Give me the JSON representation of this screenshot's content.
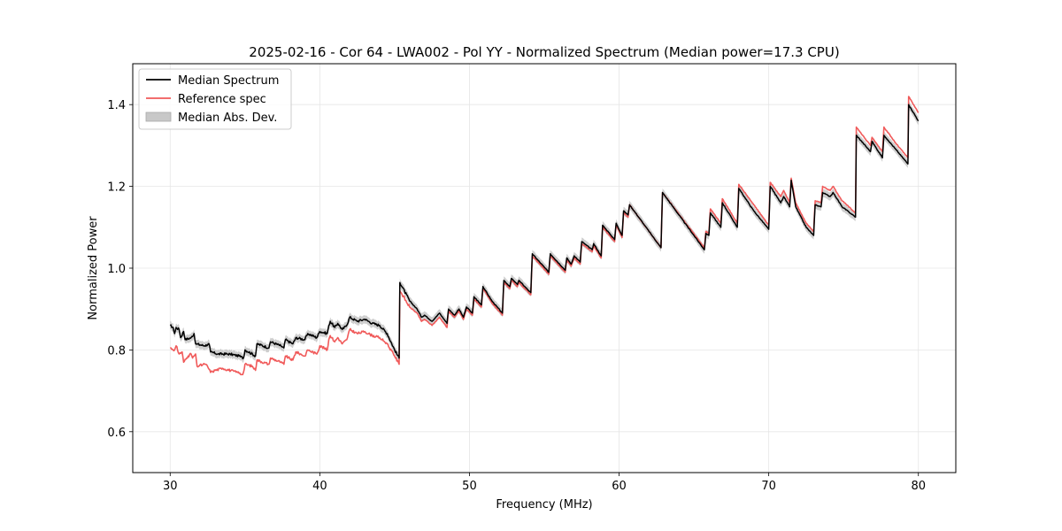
{
  "chart_data": {
    "type": "line",
    "title": "2025-02-16 - Cor 64 - LWA002 - Pol YY - Normalized Spectrum (Median power=17.3 CPU)",
    "xlabel": "Frequency (MHz)",
    "ylabel": "Normalized Power",
    "xlim": [
      27.5,
      82.5
    ],
    "ylim": [
      0.5,
      1.5
    ],
    "xticks": [
      30,
      40,
      50,
      60,
      70,
      80
    ],
    "yticks": [
      0.6,
      0.8,
      1.0,
      1.2,
      1.4
    ],
    "xtick_labels": [
      "30",
      "40",
      "50",
      "60",
      "70",
      "80"
    ],
    "ytick_labels": [
      "0.6",
      "0.8",
      "1.0",
      "1.2",
      "1.4"
    ],
    "grid": true,
    "legend_position": "top-left",
    "legend": [
      {
        "label": "Median Spectrum",
        "kind": "line",
        "color": "#000000"
      },
      {
        "label": "Reference spec",
        "kind": "line",
        "color": "#f05a5a"
      },
      {
        "label": "Median Abs. Dev.",
        "kind": "patch",
        "color": "#c8c8c8"
      }
    ],
    "series": [
      {
        "name": "Median Spectrum",
        "color": "#000000",
        "points": [
          [
            30.0,
            0.86
          ],
          [
            30.2,
            0.855
          ],
          [
            30.3,
            0.84
          ],
          [
            30.4,
            0.855
          ],
          [
            30.6,
            0.85
          ],
          [
            30.7,
            0.83
          ],
          [
            30.9,
            0.845
          ],
          [
            31.0,
            0.825
          ],
          [
            31.4,
            0.83
          ],
          [
            31.6,
            0.84
          ],
          [
            31.7,
            0.815
          ],
          [
            32.3,
            0.81
          ],
          [
            32.6,
            0.815
          ],
          [
            32.7,
            0.795
          ],
          [
            33.2,
            0.79
          ],
          [
            34.0,
            0.79
          ],
          [
            34.6,
            0.785
          ],
          [
            34.9,
            0.78
          ],
          [
            35.0,
            0.8
          ],
          [
            35.5,
            0.79
          ],
          [
            35.7,
            0.785
          ],
          [
            35.8,
            0.815
          ],
          [
            36.6,
            0.805
          ],
          [
            36.7,
            0.82
          ],
          [
            37.4,
            0.81
          ],
          [
            37.6,
            0.805
          ],
          [
            37.7,
            0.825
          ],
          [
            38.2,
            0.815
          ],
          [
            38.4,
            0.83
          ],
          [
            39.0,
            0.825
          ],
          [
            39.2,
            0.84
          ],
          [
            39.8,
            0.83
          ],
          [
            40.0,
            0.845
          ],
          [
            40.5,
            0.84
          ],
          [
            40.6,
            0.86
          ],
          [
            40.7,
            0.87
          ],
          [
            41.0,
            0.855
          ],
          [
            41.2,
            0.865
          ],
          [
            41.5,
            0.85
          ],
          [
            41.8,
            0.86
          ],
          [
            42.0,
            0.88
          ],
          [
            42.5,
            0.87
          ],
          [
            43.0,
            0.875
          ],
          [
            43.5,
            0.865
          ],
          [
            44.0,
            0.86
          ],
          [
            44.5,
            0.84
          ],
          [
            45.0,
            0.8
          ],
          [
            45.3,
            0.78
          ],
          [
            45.35,
            0.965
          ],
          [
            46.0,
            0.92
          ],
          [
            46.5,
            0.9
          ],
          [
            46.8,
            0.88
          ],
          [
            47.0,
            0.885
          ],
          [
            47.5,
            0.87
          ],
          [
            48.0,
            0.89
          ],
          [
            48.5,
            0.865
          ],
          [
            48.6,
            0.9
          ],
          [
            49.0,
            0.885
          ],
          [
            49.3,
            0.9
          ],
          [
            49.6,
            0.88
          ],
          [
            49.8,
            0.905
          ],
          [
            50.2,
            0.89
          ],
          [
            50.3,
            0.93
          ],
          [
            50.8,
            0.91
          ],
          [
            50.9,
            0.955
          ],
          [
            51.5,
            0.92
          ],
          [
            52.2,
            0.89
          ],
          [
            52.3,
            0.97
          ],
          [
            52.7,
            0.955
          ],
          [
            52.8,
            0.975
          ],
          [
            53.2,
            0.96
          ],
          [
            53.3,
            0.97
          ],
          [
            53.7,
            0.955
          ],
          [
            54.1,
            0.94
          ],
          [
            54.2,
            1.035
          ],
          [
            55.3,
            0.99
          ],
          [
            55.4,
            1.035
          ],
          [
            56.4,
            0.995
          ],
          [
            56.5,
            1.025
          ],
          [
            56.8,
            1.01
          ],
          [
            57.0,
            1.03
          ],
          [
            57.4,
            1.015
          ],
          [
            57.5,
            1.065
          ],
          [
            58.2,
            1.045
          ],
          [
            58.3,
            1.06
          ],
          [
            58.8,
            1.03
          ],
          [
            58.9,
            1.105
          ],
          [
            59.7,
            1.07
          ],
          [
            59.8,
            1.11
          ],
          [
            60.2,
            1.08
          ],
          [
            60.3,
            1.14
          ],
          [
            60.6,
            1.13
          ],
          [
            60.7,
            1.155
          ],
          [
            62.8,
            1.05
          ],
          [
            62.9,
            1.185
          ],
          [
            65.7,
            1.045
          ],
          [
            65.8,
            1.085
          ],
          [
            66.0,
            1.08
          ],
          [
            66.1,
            1.135
          ],
          [
            66.8,
            1.1
          ],
          [
            66.9,
            1.16
          ],
          [
            67.9,
            1.1
          ],
          [
            68.0,
            1.195
          ],
          [
            69.0,
            1.14
          ],
          [
            70.0,
            1.095
          ],
          [
            70.1,
            1.2
          ],
          [
            70.8,
            1.16
          ],
          [
            71.0,
            1.175
          ],
          [
            71.4,
            1.15
          ],
          [
            71.5,
            1.215
          ],
          [
            71.8,
            1.15
          ],
          [
            72.5,
            1.1
          ],
          [
            73.0,
            1.08
          ],
          [
            73.1,
            1.155
          ],
          [
            73.5,
            1.15
          ],
          [
            73.6,
            1.185
          ],
          [
            74.1,
            1.175
          ],
          [
            74.3,
            1.185
          ],
          [
            74.9,
            1.15
          ],
          [
            75.8,
            1.125
          ],
          [
            75.85,
            1.325
          ],
          [
            76.8,
            1.285
          ],
          [
            76.9,
            1.31
          ],
          [
            77.6,
            1.27
          ],
          [
            77.7,
            1.325
          ],
          [
            78.5,
            1.29
          ],
          [
            79.3,
            1.255
          ],
          [
            79.35,
            1.4
          ],
          [
            80.0,
            1.36
          ]
        ]
      },
      {
        "name": "Reference spec",
        "color": "#f05a5a",
        "points": [
          [
            30.0,
            0.805
          ],
          [
            30.3,
            0.8
          ],
          [
            30.4,
            0.81
          ],
          [
            30.6,
            0.79
          ],
          [
            30.8,
            0.795
          ],
          [
            30.9,
            0.77
          ],
          [
            31.2,
            0.785
          ],
          [
            31.4,
            0.79
          ],
          [
            31.5,
            0.78
          ],
          [
            31.7,
            0.79
          ],
          [
            31.8,
            0.76
          ],
          [
            32.3,
            0.765
          ],
          [
            32.5,
            0.76
          ],
          [
            32.7,
            0.745
          ],
          [
            33.0,
            0.75
          ],
          [
            33.5,
            0.755
          ],
          [
            34.5,
            0.745
          ],
          [
            34.8,
            0.74
          ],
          [
            34.9,
            0.745
          ],
          [
            35.0,
            0.765
          ],
          [
            35.5,
            0.76
          ],
          [
            35.7,
            0.75
          ],
          [
            35.8,
            0.775
          ],
          [
            36.6,
            0.765
          ],
          [
            36.7,
            0.78
          ],
          [
            37.4,
            0.77
          ],
          [
            37.6,
            0.765
          ],
          [
            37.7,
            0.785
          ],
          [
            38.2,
            0.775
          ],
          [
            38.4,
            0.795
          ],
          [
            39.0,
            0.785
          ],
          [
            39.2,
            0.8
          ],
          [
            39.8,
            0.79
          ],
          [
            40.0,
            0.81
          ],
          [
            40.5,
            0.8
          ],
          [
            40.6,
            0.825
          ],
          [
            40.7,
            0.835
          ],
          [
            41.0,
            0.82
          ],
          [
            41.2,
            0.83
          ],
          [
            41.5,
            0.815
          ],
          [
            41.8,
            0.825
          ],
          [
            42.0,
            0.85
          ],
          [
            42.5,
            0.84
          ],
          [
            43.0,
            0.845
          ],
          [
            43.5,
            0.835
          ],
          [
            44.0,
            0.83
          ],
          [
            44.5,
            0.815
          ],
          [
            45.0,
            0.785
          ],
          [
            45.3,
            0.765
          ],
          [
            45.35,
            0.945
          ],
          [
            46.0,
            0.905
          ],
          [
            46.5,
            0.89
          ],
          [
            46.8,
            0.87
          ],
          [
            47.0,
            0.875
          ],
          [
            47.5,
            0.86
          ],
          [
            48.0,
            0.88
          ],
          [
            48.5,
            0.855
          ],
          [
            48.6,
            0.895
          ],
          [
            49.0,
            0.88
          ],
          [
            49.3,
            0.895
          ],
          [
            49.6,
            0.875
          ],
          [
            49.8,
            0.9
          ],
          [
            50.2,
            0.885
          ],
          [
            50.3,
            0.925
          ],
          [
            50.8,
            0.905
          ],
          [
            50.9,
            0.95
          ],
          [
            51.5,
            0.915
          ],
          [
            52.2,
            0.885
          ],
          [
            52.3,
            0.965
          ],
          [
            52.7,
            0.95
          ],
          [
            52.8,
            0.97
          ],
          [
            53.2,
            0.955
          ],
          [
            53.3,
            0.965
          ],
          [
            53.7,
            0.95
          ],
          [
            54.1,
            0.935
          ],
          [
            54.2,
            1.03
          ],
          [
            55.3,
            0.985
          ],
          [
            55.4,
            1.03
          ],
          [
            56.4,
            0.99
          ],
          [
            56.5,
            1.02
          ],
          [
            56.8,
            1.005
          ],
          [
            57.0,
            1.025
          ],
          [
            57.4,
            1.01
          ],
          [
            57.5,
            1.06
          ],
          [
            58.2,
            1.04
          ],
          [
            58.3,
            1.055
          ],
          [
            58.8,
            1.025
          ],
          [
            58.9,
            1.1
          ],
          [
            59.7,
            1.065
          ],
          [
            59.8,
            1.105
          ],
          [
            60.2,
            1.075
          ],
          [
            60.3,
            1.135
          ],
          [
            60.6,
            1.125
          ],
          [
            60.7,
            1.155
          ],
          [
            62.8,
            1.05
          ],
          [
            62.9,
            1.185
          ],
          [
            65.7,
            1.05
          ],
          [
            65.8,
            1.09
          ],
          [
            66.0,
            1.085
          ],
          [
            66.1,
            1.145
          ],
          [
            66.8,
            1.11
          ],
          [
            66.9,
            1.17
          ],
          [
            67.9,
            1.11
          ],
          [
            68.0,
            1.205
          ],
          [
            69.0,
            1.155
          ],
          [
            70.0,
            1.105
          ],
          [
            70.1,
            1.21
          ],
          [
            70.8,
            1.175
          ],
          [
            71.0,
            1.19
          ],
          [
            71.4,
            1.16
          ],
          [
            71.5,
            1.22
          ],
          [
            71.8,
            1.16
          ],
          [
            72.5,
            1.11
          ],
          [
            73.0,
            1.09
          ],
          [
            73.1,
            1.165
          ],
          [
            73.5,
            1.16
          ],
          [
            73.6,
            1.2
          ],
          [
            74.1,
            1.19
          ],
          [
            74.3,
            1.2
          ],
          [
            74.9,
            1.165
          ],
          [
            75.8,
            1.135
          ],
          [
            75.85,
            1.345
          ],
          [
            76.8,
            1.3
          ],
          [
            76.9,
            1.32
          ],
          [
            77.6,
            1.285
          ],
          [
            77.7,
            1.345
          ],
          [
            78.5,
            1.305
          ],
          [
            79.3,
            1.27
          ],
          [
            79.35,
            1.42
          ],
          [
            80.0,
            1.38
          ]
        ]
      },
      {
        "name": "Median Abs. Dev.",
        "kind": "band",
        "color": "#c8c8c8",
        "half_width": 0.01
      }
    ]
  }
}
